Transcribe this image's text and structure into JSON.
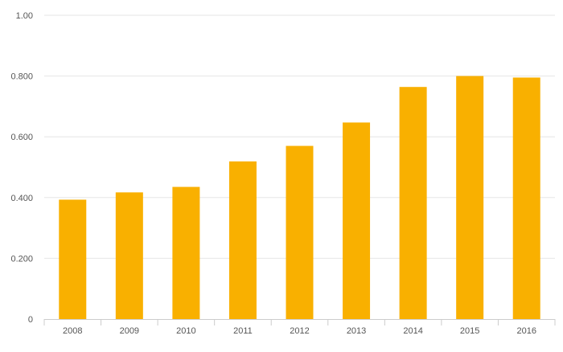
{
  "chart_data": {
    "type": "bar",
    "title": "",
    "xlabel": "",
    "ylabel": "",
    "categories": [
      "2008",
      "2009",
      "2010",
      "2011",
      "2012",
      "2013",
      "2014",
      "2015",
      "2016"
    ],
    "series": [
      {
        "color": "#f9b000",
        "values": [
          0.393,
          0.417,
          0.435,
          0.519,
          0.57,
          0.647,
          0.764,
          0.8,
          0.795
        ]
      }
    ],
    "ylim": [
      0,
      1.0
    ],
    "yticks": [
      0,
      0.2,
      0.4,
      0.6,
      0.8,
      1.0
    ],
    "ytick_labels": [
      "0",
      "0.200",
      "0.400",
      "0.600",
      "0.800",
      "1.00"
    ],
    "grid": true,
    "legend": "none",
    "colors": {
      "bar": "#f9b000",
      "grid": "#e6e6e6",
      "axis": "#cccccc",
      "text": "#555555"
    }
  }
}
